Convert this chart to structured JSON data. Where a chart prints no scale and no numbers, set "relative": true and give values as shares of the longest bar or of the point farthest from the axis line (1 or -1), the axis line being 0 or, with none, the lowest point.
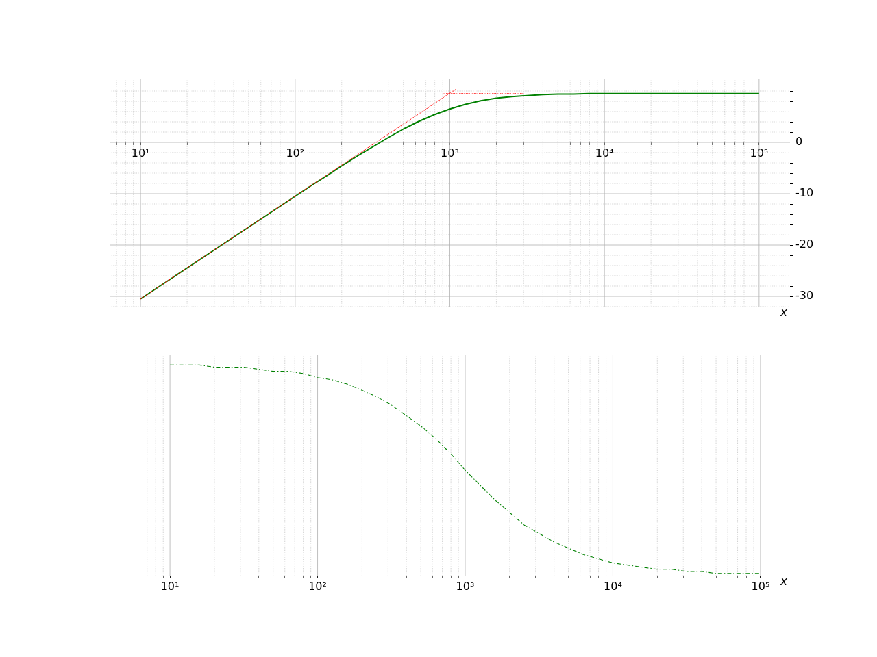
{
  "chart_data": [
    {
      "type": "line",
      "xlabel": "x",
      "log": "x",
      "grid": true,
      "xlim": [
        6.31,
        158489
      ],
      "ylim": [
        -32,
        12.4
      ],
      "xticks": [
        {
          "value": 7,
          "label": null
        },
        {
          "value": 8,
          "label": null
        },
        {
          "value": 9,
          "label": null
        },
        {
          "value": 10,
          "label": "10¹"
        },
        {
          "value": 20,
          "label": null
        },
        {
          "value": 30,
          "label": null
        },
        {
          "value": 40,
          "label": null
        },
        {
          "value": 50,
          "label": null
        },
        {
          "value": 60,
          "label": null
        },
        {
          "value": 70,
          "label": null
        },
        {
          "value": 80,
          "label": null
        },
        {
          "value": 90,
          "label": null
        },
        {
          "value": 100,
          "label": "10²"
        },
        {
          "value": 200,
          "label": null
        },
        {
          "value": 300,
          "label": null
        },
        {
          "value": 400,
          "label": null
        },
        {
          "value": 500,
          "label": null
        },
        {
          "value": 600,
          "label": null
        },
        {
          "value": 700,
          "label": null
        },
        {
          "value": 800,
          "label": null
        },
        {
          "value": 900,
          "label": null
        },
        {
          "value": 1000,
          "label": "10³"
        },
        {
          "value": 2000,
          "label": null
        },
        {
          "value": 3000,
          "label": null
        },
        {
          "value": 4000,
          "label": null
        },
        {
          "value": 5000,
          "label": null
        },
        {
          "value": 6000,
          "label": null
        },
        {
          "value": 7000,
          "label": null
        },
        {
          "value": 8000,
          "label": null
        },
        {
          "value": 9000,
          "label": null
        },
        {
          "value": 10000,
          "label": "10⁴"
        },
        {
          "value": 20000,
          "label": null
        },
        {
          "value": 30000,
          "label": null
        },
        {
          "value": 40000,
          "label": null
        },
        {
          "value": 50000,
          "label": null
        },
        {
          "value": 60000,
          "label": null
        },
        {
          "value": 70000,
          "label": null
        },
        {
          "value": 80000,
          "label": null
        },
        {
          "value": 90000,
          "label": null
        },
        {
          "value": 100000,
          "label": "10⁵"
        }
      ],
      "yticks": [
        {
          "value": -32,
          "label": null
        },
        -30,
        {
          "value": -28,
          "label": null
        },
        {
          "value": -26,
          "label": null
        },
        {
          "value": -24,
          "label": null
        },
        {
          "value": -22,
          "label": null
        },
        -20,
        {
          "value": -18,
          "label": null
        },
        {
          "value": -16,
          "label": null
        },
        {
          "value": -14,
          "label": null
        },
        {
          "value": -12,
          "label": null
        },
        -10,
        {
          "value": -8,
          "label": null
        },
        {
          "value": -6,
          "label": null
        },
        {
          "value": -4,
          "label": null
        },
        {
          "value": -2,
          "label": null
        },
        0,
        {
          "value": 2,
          "label": null
        },
        {
          "value": 4,
          "label": null
        },
        {
          "value": 6,
          "label": null
        },
        {
          "value": 8,
          "label": null
        },
        {
          "value": 10,
          "label": null
        }
      ],
      "series": [
        {
          "color": "#ff0000",
          "line_style": "dotted",
          "x": [
            10,
            1100
          ],
          "values": [
            -30.5,
            10.4
          ]
        },
        {
          "color": "#ff0000",
          "line_style": "dotted",
          "x": [
            900,
            3000
          ],
          "values": [
            9.5,
            9.5
          ]
        },
        {
          "color": "#008000",
          "line_style": "solid",
          "x": [
            10,
            12.59,
            15.85,
            19.95,
            25.12,
            31.62,
            39.81,
            50.12,
            63.1,
            79.43,
            100,
            125.9,
            158.5,
            199.5,
            251.2,
            316.2,
            398.1,
            501.2,
            631,
            794.3,
            1000,
            1259,
            1585,
            1995,
            2512,
            3162,
            3981,
            5012,
            6310,
            7943,
            10000,
            12589,
            15849,
            19953,
            25119,
            31623,
            39811,
            50119,
            63096,
            79433,
            100000
          ],
          "values": [
            -30.5,
            -28.5,
            -26.5,
            -24.5,
            -22.5,
            -20.5,
            -18.5,
            -16.5,
            -14.5,
            -12.5,
            -10.5,
            -8.5,
            -6.6,
            -4.6,
            -2.7,
            -0.9,
            0.9,
            2.6,
            4.1,
            5.4,
            6.5,
            7.4,
            8.1,
            8.6,
            8.9,
            9.1,
            9.3,
            9.4,
            9.4,
            9.5,
            9.5,
            9.5,
            9.5,
            9.5,
            9.5,
            9.5,
            9.5,
            9.5,
            9.5,
            9.5,
            9.5
          ]
        }
      ]
    },
    {
      "type": "line",
      "xlabel": "x",
      "log": "x",
      "grid": "x",
      "relative": true,
      "xlim": [
        6.31,
        158489
      ],
      "xticks": [
        {
          "value": 7,
          "label": null
        },
        {
          "value": 8,
          "label": null
        },
        {
          "value": 9,
          "label": null
        },
        {
          "value": 10,
          "label": "10¹"
        },
        {
          "value": 20,
          "label": null
        },
        {
          "value": 30,
          "label": null
        },
        {
          "value": 40,
          "label": null
        },
        {
          "value": 50,
          "label": null
        },
        {
          "value": 60,
          "label": null
        },
        {
          "value": 70,
          "label": null
        },
        {
          "value": 80,
          "label": null
        },
        {
          "value": 90,
          "label": null
        },
        {
          "value": 100,
          "label": "10²"
        },
        {
          "value": 200,
          "label": null
        },
        {
          "value": 300,
          "label": null
        },
        {
          "value": 400,
          "label": null
        },
        {
          "value": 500,
          "label": null
        },
        {
          "value": 600,
          "label": null
        },
        {
          "value": 700,
          "label": null
        },
        {
          "value": 800,
          "label": null
        },
        {
          "value": 900,
          "label": null
        },
        {
          "value": 1000,
          "label": "10³"
        },
        {
          "value": 2000,
          "label": null
        },
        {
          "value": 3000,
          "label": null
        },
        {
          "value": 4000,
          "label": null
        },
        {
          "value": 5000,
          "label": null
        },
        {
          "value": 6000,
          "label": null
        },
        {
          "value": 7000,
          "label": null
        },
        {
          "value": 8000,
          "label": null
        },
        {
          "value": 9000,
          "label": null
        },
        {
          "value": 10000,
          "label": "10⁴"
        },
        {
          "value": 20000,
          "label": null
        },
        {
          "value": 30000,
          "label": null
        },
        {
          "value": 40000,
          "label": null
        },
        {
          "value": 50000,
          "label": null
        },
        {
          "value": 60000,
          "label": null
        },
        {
          "value": 70000,
          "label": null
        },
        {
          "value": 80000,
          "label": null
        },
        {
          "value": 90000,
          "label": null
        },
        {
          "value": 100000,
          "label": "10⁵"
        }
      ],
      "series": [
        {
          "color": "#008000",
          "line_style": "dashed",
          "x": [
            10,
            12.59,
            15.85,
            19.95,
            25.12,
            31.62,
            39.81,
            50.12,
            63.1,
            79.43,
            100,
            125.9,
            158.5,
            199.5,
            251.2,
            316.2,
            398.1,
            501.2,
            631,
            794.3,
            1000,
            1259,
            1585,
            1995,
            2512,
            3162,
            3981,
            5012,
            6310,
            7943,
            10000,
            12589,
            15849,
            19953,
            25119,
            31623,
            39811,
            50119,
            63096,
            79433,
            100000
          ],
          "values": [
            1,
            1,
            1,
            0.99,
            0.99,
            0.99,
            0.98,
            0.97,
            0.97,
            0.96,
            0.94,
            0.93,
            0.91,
            0.88,
            0.85,
            0.81,
            0.76,
            0.71,
            0.65,
            0.58,
            0.5,
            0.43,
            0.36,
            0.3,
            0.24,
            0.2,
            0.16,
            0.13,
            0.1,
            0.08,
            0.06,
            0.05,
            0.04,
            0.03,
            0.03,
            0.02,
            0.02,
            0.01,
            0.01,
            0.01,
            0.01
          ]
        }
      ]
    }
  ]
}
